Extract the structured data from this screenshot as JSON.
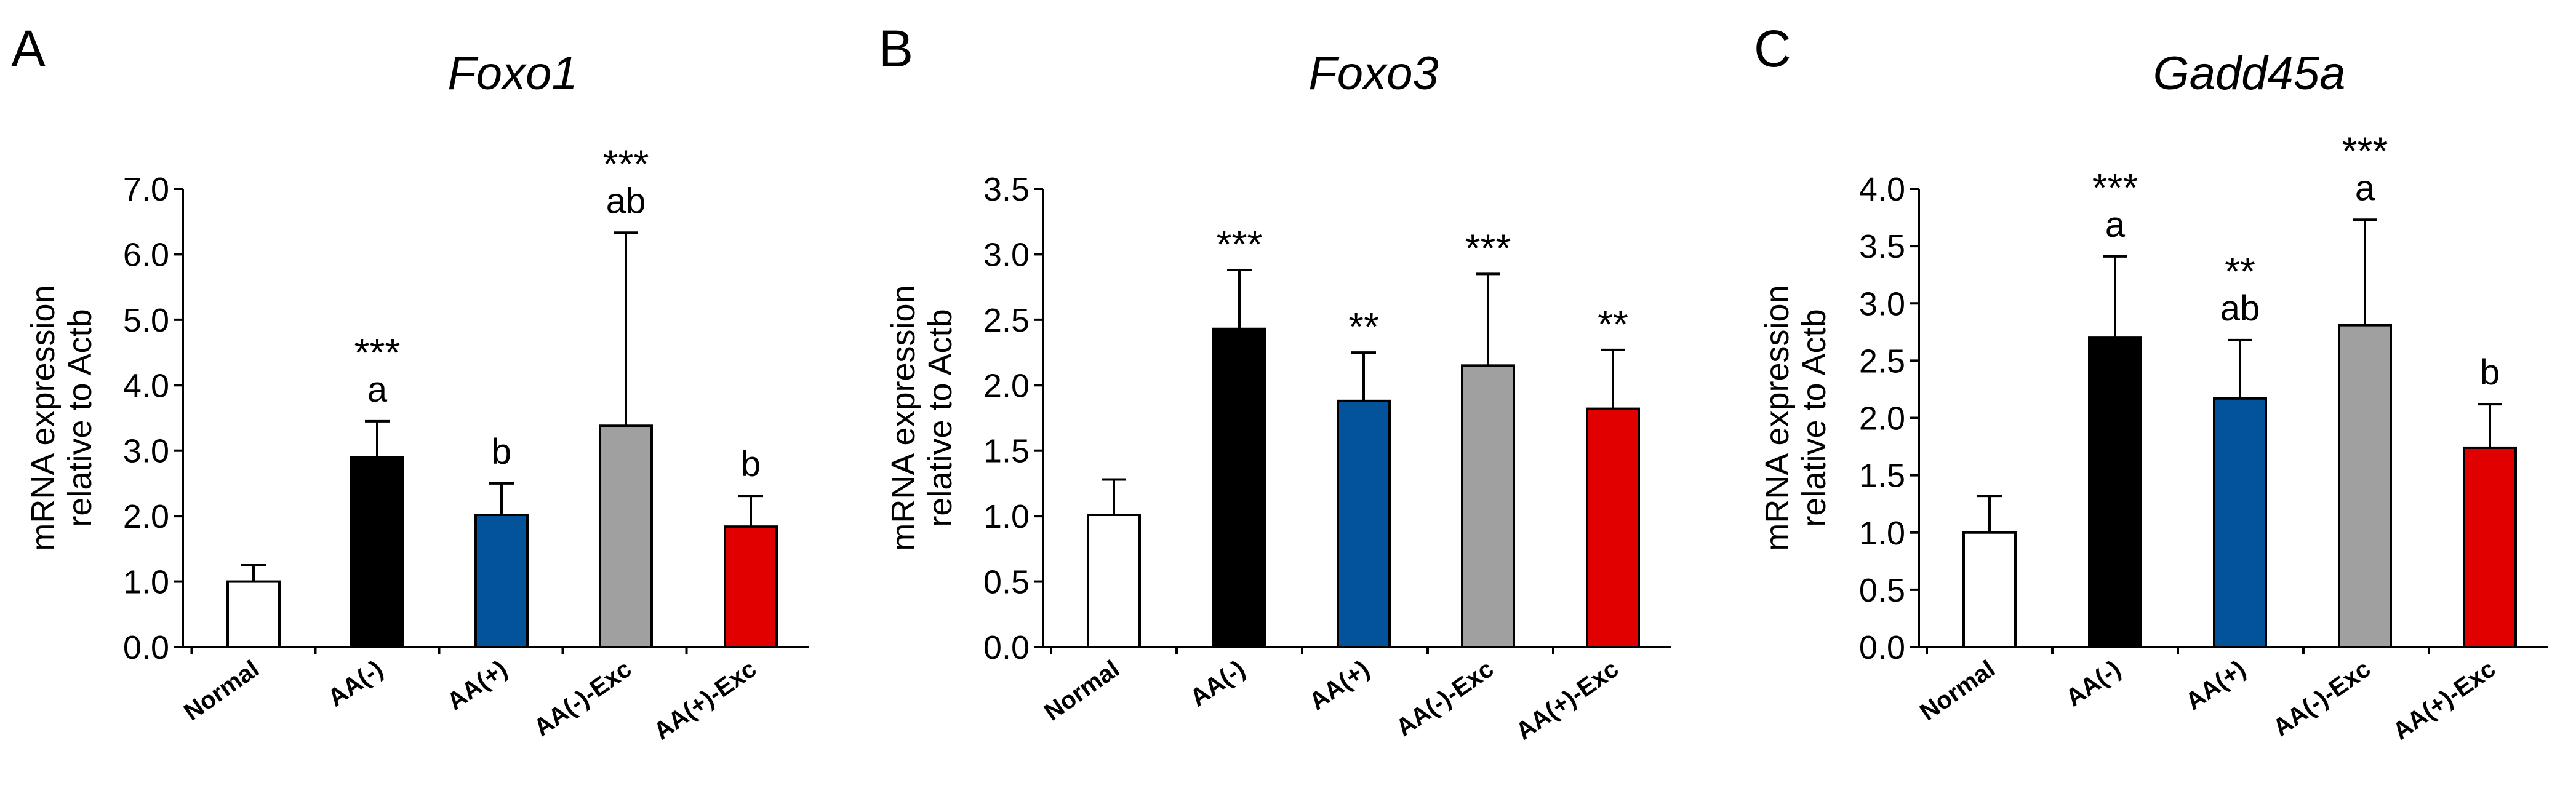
{
  "figure": {
    "categories": [
      "Normal",
      "AA(-)",
      "AA(+)",
      "AA(-)-Exc",
      "AA(+)-Exc"
    ],
    "bar_colors": [
      "#ffffff",
      "#000000",
      "#02539a",
      "#a0a0a0",
      "#e00000"
    ]
  },
  "chart_data": [
    {
      "panel": "A",
      "type": "bar",
      "title": "Foxo1",
      "xlabel": "",
      "ylabel": [
        "mRNA expression",
        "relative to Actb"
      ],
      "ylim": [
        0,
        7
      ],
      "yticks": [
        "0.0",
        "1.0",
        "2.0",
        "3.0",
        "4.0",
        "5.0",
        "6.0",
        "7.0"
      ],
      "categories": [
        "Normal",
        "AA(-)",
        "AA(+)",
        "AA(-)-Exc",
        "AA(+)-Exc"
      ],
      "values": [
        1.0,
        2.9,
        2.02,
        3.38,
        1.84
      ],
      "errors": [
        0.25,
        0.55,
        0.48,
        2.95,
        0.47
      ],
      "significance": [
        "",
        "***",
        "",
        "***",
        ""
      ],
      "letters": [
        "",
        "a",
        "b",
        "ab",
        "b"
      ]
    },
    {
      "panel": "B",
      "type": "bar",
      "title": "Foxo3",
      "xlabel": "",
      "ylabel": [
        "mRNA expression",
        "relative to Actb"
      ],
      "ylim": [
        0,
        3.5
      ],
      "yticks": [
        "0.0",
        "0.5",
        "1.0",
        "1.5",
        "2.0",
        "2.5",
        "3.0",
        "3.5"
      ],
      "categories": [
        "Normal",
        "AA(-)",
        "AA(+)",
        "AA(-)-Exc",
        "AA(+)-Exc"
      ],
      "values": [
        1.01,
        2.43,
        1.88,
        2.15,
        1.82
      ],
      "errors": [
        0.27,
        0.45,
        0.37,
        0.7,
        0.45
      ],
      "significance": [
        "",
        "***",
        "**",
        "***",
        "**"
      ],
      "letters": [
        "",
        "",
        "",
        "",
        ""
      ]
    },
    {
      "panel": "C",
      "type": "bar",
      "title": "Gadd45a",
      "xlabel": "",
      "ylabel": [
        "mRNA expression",
        "relative to Actb"
      ],
      "ylim": [
        0,
        4
      ],
      "yticks": [
        "0.0",
        "0.5",
        "1.0",
        "1.5",
        "2.0",
        "2.5",
        "3.0",
        "3.5",
        "4.0"
      ],
      "categories": [
        "Normal",
        "AA(-)",
        "AA(+)",
        "AA(-)-Exc",
        "AA(+)-Exc"
      ],
      "values": [
        1.0,
        2.7,
        2.17,
        2.81,
        1.74
      ],
      "errors": [
        0.32,
        0.71,
        0.51,
        0.92,
        0.38
      ],
      "significance": [
        "",
        "***",
        "**",
        "***",
        ""
      ],
      "letters": [
        "",
        "a",
        "ab",
        "a",
        "b"
      ]
    }
  ]
}
